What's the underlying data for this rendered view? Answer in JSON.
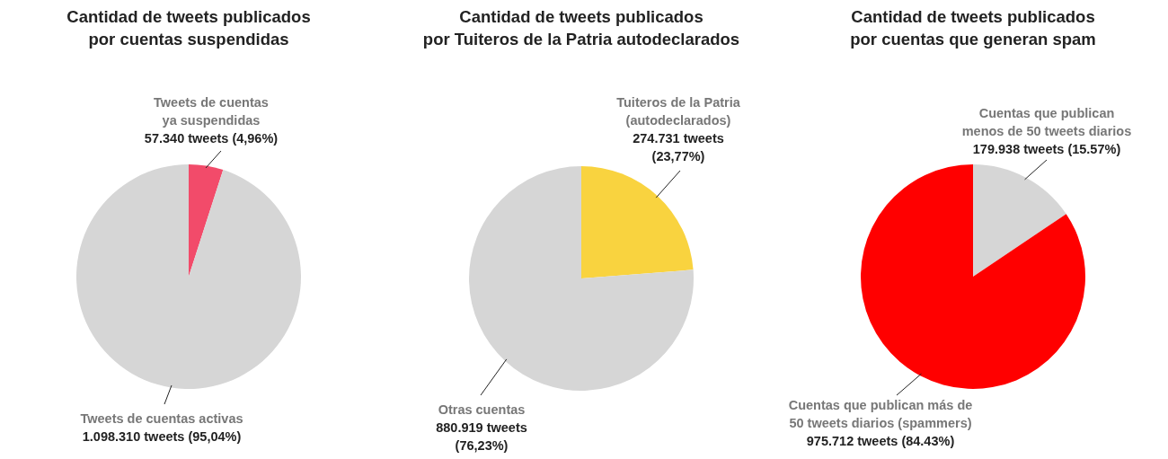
{
  "chart_data": [
    {
      "type": "pie",
      "title": "Cantidad de tweets publicados\npor cuentas suspendidas",
      "categories": [
        "Tweets de cuentas\nya suspendidas",
        "Tweets de cuentas activas"
      ],
      "values": [
        57340,
        1098310
      ],
      "colors": [
        "#f24b6a",
        "#d6d6d6"
      ],
      "value_labels": [
        "57.340 tweets (4,96%)",
        "1.098.310 tweets (95,04%)"
      ]
    },
    {
      "type": "pie",
      "title": "Cantidad de tweets publicados\npor Tuiteros de la Patria autodeclarados",
      "categories": [
        "Tuiteros de la Patria\n(autodeclarados)",
        "Otras cuentas"
      ],
      "values": [
        274731,
        880919
      ],
      "colors": [
        "#f9d33f",
        "#d6d6d6"
      ],
      "value_labels": [
        "274.731 tweets\n(23,77%)",
        "880.919 tweets\n(76,23%)"
      ]
    },
    {
      "type": "pie",
      "title": "Cantidad de tweets publicados\npor cuentas que generan spam",
      "categories": [
        "Cuentas que publican\nmenos de 50 tweets diarios",
        "Cuentas que publican más de\n50 tweets diarios (spammers)"
      ],
      "values": [
        179938,
        975712
      ],
      "colors": [
        "#d6d6d6",
        "#ff0000"
      ],
      "value_labels": [
        "179.938 tweets (15.57%)",
        "975.712 tweets (84.43%)"
      ]
    }
  ]
}
